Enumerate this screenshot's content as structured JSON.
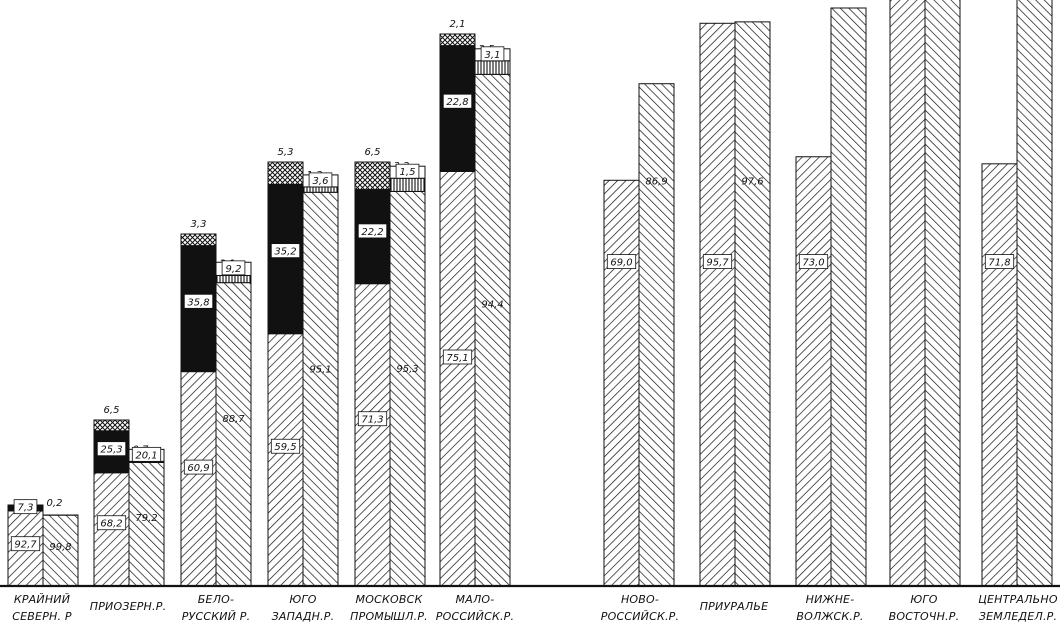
{
  "chart_data": {
    "type": "bar",
    "categories": [
      [
        "КРАЙНИЙ",
        "СЕВЕРН. Р"
      ],
      [
        "ПРИОЗЕРН.Р."
      ],
      [
        "БЕЛО-",
        "РУССКИЙ Р."
      ],
      [
        "ЮГО",
        "ЗАПАДН.Р."
      ],
      [
        "МОСКОВСК",
        "ПРОМЫШЛ.Р."
      ],
      [
        "МАЛО-",
        "РОССИЙСК.Р."
      ],
      [
        "НОВО-",
        "РОССИЙСК.Р."
      ],
      [
        "ПРИУРАЛЬЕ"
      ],
      [
        "НИЖНЕ-",
        "ВОЛЖСК.Р."
      ],
      [
        "ЮГО",
        "ВОСТОЧН.Р."
      ],
      [
        "ЦЕНТРАЛЬНО",
        "ЗЕМЛЕДЕЛ.Р."
      ]
    ],
    "bars": [
      {
        "left": [
          {
            "v": 92.7,
            "t": "92,7"
          },
          {
            "v": 7.3,
            "t": "7,3"
          }
        ],
        "right": [
          {
            "v": 99.8,
            "t": "99,8"
          },
          {
            "v": 0.2,
            "t": "0,2"
          }
        ]
      },
      {
        "left": [
          {
            "v": 68.2,
            "t": "68,2"
          },
          {
            "v": 25.3,
            "t": "25,3"
          },
          {
            "v": 6.5,
            "t": "6,5"
          }
        ],
        "right": [
          {
            "v": 79.2,
            "t": "79,2"
          },
          {
            "v": 0.7,
            "t": "0,7"
          },
          {
            "v": 20.1,
            "t": "20,1"
          }
        ]
      },
      {
        "left": [
          {
            "v": 60.9,
            "t": "60,9"
          },
          {
            "v": 35.8,
            "t": "35,8"
          },
          {
            "v": 3.3,
            "t": "3,3"
          }
        ],
        "right": [
          {
            "v": 88.7,
            "t": "88,7"
          },
          {
            "v": 2.1,
            "t": "2,1"
          },
          {
            "v": 9.2,
            "t": "9,2"
          }
        ]
      },
      {
        "left": [
          {
            "v": 59.5,
            "t": "59,5"
          },
          {
            "v": 35.2,
            "t": "35,2"
          },
          {
            "v": 5.3,
            "t": "5,3"
          }
        ],
        "right": [
          {
            "v": 95.1,
            "t": "95,1"
          },
          {
            "v": 1.3,
            "t": "1,3"
          },
          {
            "v": 3.6,
            "t": "3,6"
          }
        ]
      },
      {
        "left": [
          {
            "v": 71.3,
            "t": "71,3"
          },
          {
            "v": 22.2,
            "t": "22,2"
          },
          {
            "v": 6.5,
            "t": "6,5"
          }
        ],
        "right": [
          {
            "v": 95.3,
            "t": "95,3"
          },
          {
            "v": 3.2,
            "t": "3,2"
          },
          {
            "v": 1.5,
            "t": "1,5"
          }
        ]
      },
      {
        "left": [
          {
            "v": 75.1,
            "t": "75,1"
          },
          {
            "v": 22.8,
            "t": "22,8"
          },
          {
            "v": 2.1,
            "t": "2,1"
          }
        ],
        "right": [
          {
            "v": 94.4,
            "t": "94,4"
          },
          {
            "v": 2.5,
            "t": "2,5"
          },
          {
            "v": 3.1,
            "t": "3,1"
          }
        ]
      },
      {
        "left": [
          {
            "v": 69.0,
            "t": "69,0"
          }
        ],
        "right": [
          {
            "v": 86.9,
            "t": "86,9"
          }
        ]
      },
      {
        "left": [
          {
            "v": 95.7,
            "t": "95,7"
          }
        ],
        "right": [
          {
            "v": 97.6,
            "t": "97,6"
          }
        ]
      },
      {
        "left": [
          {
            "v": 73.0,
            "t": "73,0"
          }
        ],
        "right": [
          {
            "v": null,
            "t": ""
          }
        ]
      },
      {
        "left": [],
        "right": []
      },
      {
        "left": [
          {
            "v": 71.8,
            "t": "71,8"
          }
        ],
        "right": []
      }
    ]
  }
}
